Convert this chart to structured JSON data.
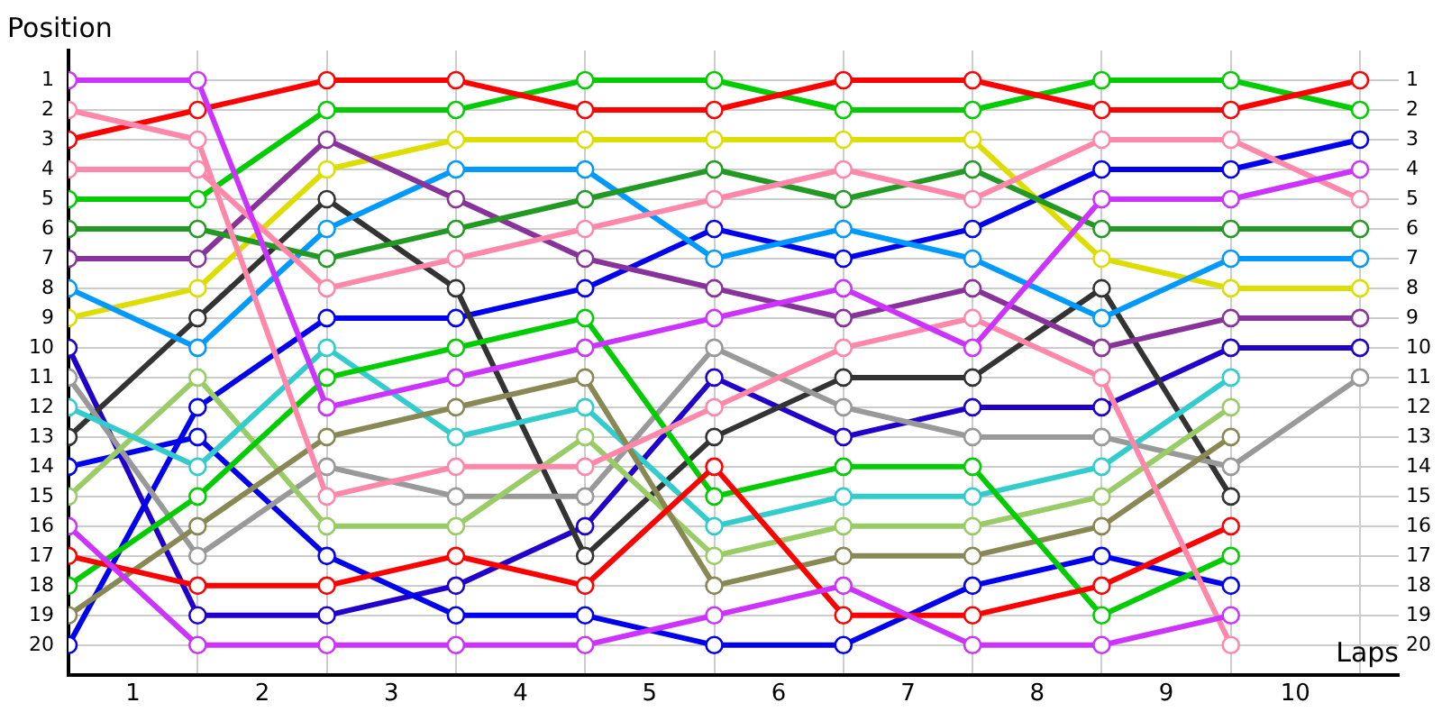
{
  "chart_data": {
    "type": "line",
    "xlabel": "Laps",
    "ylabel": "Position",
    "x": [
      0,
      1,
      2,
      3,
      4,
      5,
      6,
      7,
      8,
      9,
      10
    ],
    "xlim": [
      0,
      10.3
    ],
    "xticks": [
      {
        "value": 0,
        "label": null
      },
      {
        "value": 0.5,
        "label": "1"
      },
      {
        "value": 1,
        "label": null
      },
      {
        "value": 1.5,
        "label": "2"
      },
      {
        "value": 2,
        "label": null
      },
      {
        "value": 2.5,
        "label": "3"
      },
      {
        "value": 3,
        "label": null
      },
      {
        "value": 3.5,
        "label": "4"
      },
      {
        "value": 4,
        "label": null
      },
      {
        "value": 4.5,
        "label": "5"
      },
      {
        "value": 5,
        "label": null
      },
      {
        "value": 5.5,
        "label": "6"
      },
      {
        "value": 6,
        "label": null
      },
      {
        "value": 6.5,
        "label": "7"
      },
      {
        "value": 7,
        "label": null
      },
      {
        "value": 7.5,
        "label": "8"
      },
      {
        "value": 8,
        "label": null
      },
      {
        "value": 8.5,
        "label": "9"
      },
      {
        "value": 9,
        "label": null
      },
      {
        "value": 9.5,
        "label": "10"
      },
      {
        "value": 10,
        "label": null
      }
    ],
    "ylim": [
      21,
      0
    ],
    "yticks": [
      1,
      2,
      3,
      4,
      5,
      6,
      7,
      8,
      9,
      10,
      11,
      12,
      13,
      14,
      15,
      16,
      17,
      18,
      19,
      20
    ],
    "y2lim": [
      21,
      0
    ],
    "y2ticks": [
      1,
      2,
      3,
      4,
      5,
      6,
      7,
      8,
      9,
      10,
      11,
      12,
      13,
      14,
      15,
      16,
      17,
      18,
      19,
      20
    ],
    "grid": true,
    "legend": false,
    "marker": "circle",
    "line_style": "solid",
    "series": [
      {
        "color": "#cc33ff",
        "values": [
          1,
          1,
          12,
          11,
          10,
          9,
          8,
          10,
          5,
          5,
          4
        ]
      },
      {
        "color": "#cc33ff",
        "values": [
          16,
          20,
          20,
          20,
          20,
          19,
          18,
          20,
          20,
          19,
          null
        ]
      },
      {
        "color": "#ff88aa",
        "values": [
          2,
          3,
          15,
          14,
          14,
          12,
          10,
          9,
          11,
          20,
          null
        ]
      },
      {
        "color": "#ff88aa",
        "values": [
          4,
          4,
          8,
          7,
          6,
          5,
          4,
          5,
          3,
          3,
          5
        ]
      },
      {
        "color": "#ff0000",
        "values": [
          3,
          2,
          1,
          1,
          2,
          2,
          1,
          1,
          2,
          2,
          1
        ]
      },
      {
        "color": "#ff0000",
        "values": [
          17,
          18,
          18,
          17,
          18,
          14,
          19,
          19,
          18,
          16,
          null
        ]
      },
      {
        "color": "#00cc00",
        "values": [
          5,
          5,
          2,
          2,
          1,
          1,
          2,
          2,
          1,
          1,
          2
        ]
      },
      {
        "color": "#00cc00",
        "values": [
          18,
          15,
          11,
          10,
          9,
          15,
          14,
          14,
          19,
          17,
          null
        ]
      },
      {
        "color": "#229922",
        "values": [
          6,
          6,
          7,
          6,
          5,
          4,
          5,
          4,
          6,
          6,
          6
        ]
      },
      {
        "color": "#888855",
        "values": [
          19,
          16,
          13,
          12,
          11,
          18,
          17,
          17,
          16,
          13,
          null
        ]
      },
      {
        "color": "#883399",
        "values": [
          7,
          7,
          3,
          5,
          7,
          8,
          9,
          8,
          10,
          9,
          9
        ]
      },
      {
        "color": "#0099ff",
        "values": [
          8,
          10,
          6,
          4,
          4,
          7,
          6,
          7,
          9,
          7,
          7
        ]
      },
      {
        "color": "#33cccc",
        "values": [
          12,
          14,
          10,
          13,
          12,
          16,
          15,
          15,
          14,
          11,
          null
        ]
      },
      {
        "color": "#dddd00",
        "values": [
          9,
          8,
          4,
          3,
          3,
          3,
          3,
          3,
          7,
          8,
          8
        ]
      },
      {
        "color": "#99cc66",
        "values": [
          15,
          11,
          16,
          16,
          13,
          17,
          16,
          16,
          15,
          12,
          null
        ]
      },
      {
        "color": "#999999",
        "values": [
          11,
          17,
          14,
          15,
          15,
          10,
          12,
          13,
          13,
          14,
          11
        ]
      },
      {
        "color": "#333333",
        "values": [
          13,
          9,
          5,
          8,
          17,
          13,
          11,
          11,
          8,
          15,
          null
        ]
      },
      {
        "color": "#0000ee",
        "values": [
          14,
          13,
          17,
          19,
          19,
          20,
          20,
          18,
          17,
          18,
          null
        ]
      },
      {
        "color": "#0000ee",
        "values": [
          20,
          12,
          9,
          9,
          8,
          6,
          7,
          6,
          4,
          4,
          3
        ]
      },
      {
        "color": "#2200cc",
        "values": [
          10,
          19,
          19,
          18,
          16,
          11,
          13,
          12,
          12,
          10,
          10
        ]
      }
    ]
  }
}
